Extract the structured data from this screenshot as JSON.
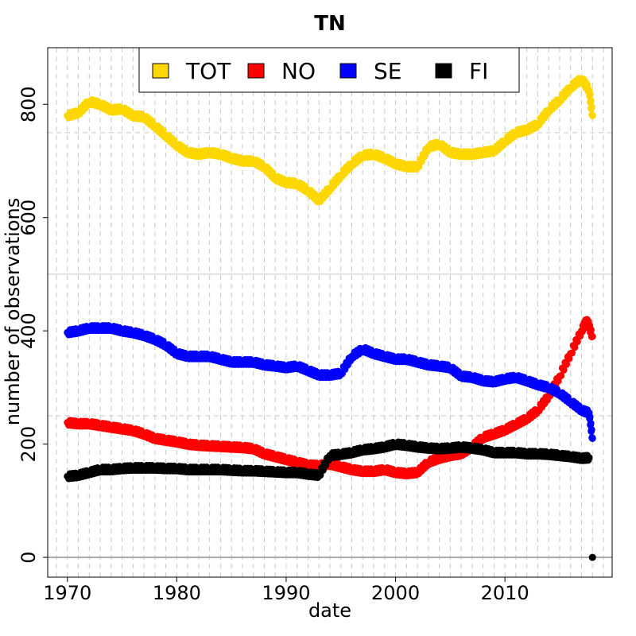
{
  "chart_data": {
    "type": "scatter",
    "title": "TN",
    "xlabel": "date",
    "ylabel": "number of observations",
    "xlim": [
      1968.2,
      2019.8
    ],
    "ylim": [
      -35,
      900
    ],
    "x_ticks": [
      1970,
      1980,
      1990,
      2000,
      2010
    ],
    "x_tick_labels": [
      "1970",
      "1980",
      "1990",
      "2000",
      "2010"
    ],
    "y_ticks": [
      0,
      200,
      400,
      600,
      800
    ],
    "y_tick_labels": [
      "0",
      "200",
      "400",
      "600",
      "800"
    ],
    "horizontal_reference_lines": [
      0,
      250,
      500,
      750
    ],
    "grid": "vertical dashed lines each year",
    "legend": "top",
    "series": [
      {
        "name": "TOT",
        "color": "#FFD700",
        "points": [
          [
            1970,
            780
          ],
          [
            1971,
            785
          ],
          [
            1972,
            805
          ],
          [
            1973,
            800
          ],
          [
            1974,
            790
          ],
          [
            1975,
            792
          ],
          [
            1976,
            780
          ],
          [
            1977,
            778
          ],
          [
            1978,
            762
          ],
          [
            1979,
            745
          ],
          [
            1980,
            728
          ],
          [
            1981,
            715
          ],
          [
            1982,
            712
          ],
          [
            1983,
            715
          ],
          [
            1984,
            712
          ],
          [
            1985,
            705
          ],
          [
            1986,
            700
          ],
          [
            1987,
            700
          ],
          [
            1988,
            690
          ],
          [
            1989,
            670
          ],
          [
            1990,
            662
          ],
          [
            1991,
            660
          ],
          [
            1992,
            648
          ],
          [
            1993,
            630
          ],
          [
            1994,
            652
          ],
          [
            1995,
            675
          ],
          [
            1996,
            695
          ],
          [
            1997,
            710
          ],
          [
            1998,
            712
          ],
          [
            1999,
            705
          ],
          [
            2000,
            695
          ],
          [
            2001,
            690
          ],
          [
            2002,
            690
          ],
          [
            2003,
            725
          ],
          [
            2004,
            730
          ],
          [
            2005,
            715
          ],
          [
            2006,
            712
          ],
          [
            2007,
            712
          ],
          [
            2008,
            715
          ],
          [
            2009,
            718
          ],
          [
            2010,
            735
          ],
          [
            2011,
            750
          ],
          [
            2012,
            755
          ],
          [
            2013,
            765
          ],
          [
            2014,
            790
          ],
          [
            2015,
            808
          ],
          [
            2016,
            830
          ],
          [
            2017,
            845
          ],
          [
            2017.7,
            825
          ],
          [
            2018,
            780
          ]
        ]
      },
      {
        "name": "NO",
        "color": "#FF0000",
        "points": [
          [
            1970,
            238
          ],
          [
            1971,
            236
          ],
          [
            1972,
            236
          ],
          [
            1973,
            233
          ],
          [
            1974,
            230
          ],
          [
            1975,
            227
          ],
          [
            1976,
            224
          ],
          [
            1977,
            218
          ],
          [
            1978,
            210
          ],
          [
            1979,
            207
          ],
          [
            1980,
            204
          ],
          [
            1981,
            200
          ],
          [
            1982,
            198
          ],
          [
            1983,
            197
          ],
          [
            1984,
            196
          ],
          [
            1985,
            195
          ],
          [
            1986,
            194
          ],
          [
            1987,
            192
          ],
          [
            1988,
            183
          ],
          [
            1989,
            178
          ],
          [
            1990,
            173
          ],
          [
            1991,
            168
          ],
          [
            1992,
            163
          ],
          [
            1993,
            162
          ],
          [
            1994,
            165
          ],
          [
            1995,
            160
          ],
          [
            1996,
            155
          ],
          [
            1997,
            152
          ],
          [
            1998,
            152
          ],
          [
            1999,
            155
          ],
          [
            2000,
            150
          ],
          [
            2001,
            148
          ],
          [
            2002,
            150
          ],
          [
            2003,
            168
          ],
          [
            2004,
            175
          ],
          [
            2005,
            180
          ],
          [
            2006,
            183
          ],
          [
            2007,
            195
          ],
          [
            2008,
            212
          ],
          [
            2009,
            218
          ],
          [
            2010,
            225
          ],
          [
            2011,
            235
          ],
          [
            2012,
            245
          ],
          [
            2013,
            260
          ],
          [
            2014,
            285
          ],
          [
            2015,
            320
          ],
          [
            2016,
            360
          ],
          [
            2017,
            400
          ],
          [
            2017.5,
            420
          ],
          [
            2018,
            390
          ]
        ]
      },
      {
        "name": "SE",
        "color": "#0000FF",
        "points": [
          [
            1970,
            397
          ],
          [
            1971,
            400
          ],
          [
            1972,
            405
          ],
          [
            1973,
            405
          ],
          [
            1974,
            405
          ],
          [
            1975,
            400
          ],
          [
            1976,
            397
          ],
          [
            1977,
            392
          ],
          [
            1978,
            385
          ],
          [
            1979,
            375
          ],
          [
            1980,
            360
          ],
          [
            1981,
            355
          ],
          [
            1982,
            355
          ],
          [
            1983,
            355
          ],
          [
            1984,
            350
          ],
          [
            1985,
            345
          ],
          [
            1986,
            345
          ],
          [
            1987,
            345
          ],
          [
            1988,
            340
          ],
          [
            1989,
            338
          ],
          [
            1990,
            335
          ],
          [
            1991,
            338
          ],
          [
            1992,
            330
          ],
          [
            1993,
            322
          ],
          [
            1994,
            322
          ],
          [
            1995,
            325
          ],
          [
            1996,
            355
          ],
          [
            1997,
            368
          ],
          [
            1998,
            360
          ],
          [
            1999,
            355
          ],
          [
            2000,
            350
          ],
          [
            2001,
            350
          ],
          [
            2002,
            345
          ],
          [
            2003,
            340
          ],
          [
            2004,
            338
          ],
          [
            2005,
            335
          ],
          [
            2006,
            320
          ],
          [
            2007,
            318
          ],
          [
            2008,
            312
          ],
          [
            2009,
            310
          ],
          [
            2010,
            315
          ],
          [
            2011,
            318
          ],
          [
            2012,
            312
          ],
          [
            2013,
            305
          ],
          [
            2014,
            300
          ],
          [
            2015,
            290
          ],
          [
            2016,
            275
          ],
          [
            2017,
            260
          ],
          [
            2017.7,
            255
          ],
          [
            2018,
            210
          ]
        ]
      },
      {
        "name": "FI",
        "color": "#000000",
        "points": [
          [
            1970,
            143
          ],
          [
            1971,
            145
          ],
          [
            1972,
            150
          ],
          [
            1973,
            155
          ],
          [
            1974,
            155
          ],
          [
            1975,
            157
          ],
          [
            1976,
            158
          ],
          [
            1977,
            158
          ],
          [
            1978,
            158
          ],
          [
            1979,
            157
          ],
          [
            1980,
            157
          ],
          [
            1981,
            155
          ],
          [
            1982,
            155
          ],
          [
            1983,
            155
          ],
          [
            1984,
            155
          ],
          [
            1985,
            154
          ],
          [
            1986,
            153
          ],
          [
            1987,
            153
          ],
          [
            1988,
            152
          ],
          [
            1989,
            151
          ],
          [
            1990,
            150
          ],
          [
            1991,
            150
          ],
          [
            1992,
            147
          ],
          [
            1993,
            145
          ],
          [
            1994,
            180
          ],
          [
            1995,
            182
          ],
          [
            1996,
            185
          ],
          [
            1997,
            190
          ],
          [
            1998,
            192
          ],
          [
            1999,
            195
          ],
          [
            2000,
            200
          ],
          [
            2001,
            198
          ],
          [
            2002,
            195
          ],
          [
            2003,
            193
          ],
          [
            2004,
            192
          ],
          [
            2005,
            193
          ],
          [
            2006,
            195
          ],
          [
            2007,
            193
          ],
          [
            2008,
            190
          ],
          [
            2009,
            185
          ],
          [
            2010,
            185
          ],
          [
            2011,
            185
          ],
          [
            2012,
            183
          ],
          [
            2013,
            183
          ],
          [
            2014,
            182
          ],
          [
            2015,
            180
          ],
          [
            2016,
            178
          ],
          [
            2017,
            175
          ],
          [
            2017.7,
            176
          ],
          [
            2018,
            0
          ]
        ]
      }
    ]
  }
}
